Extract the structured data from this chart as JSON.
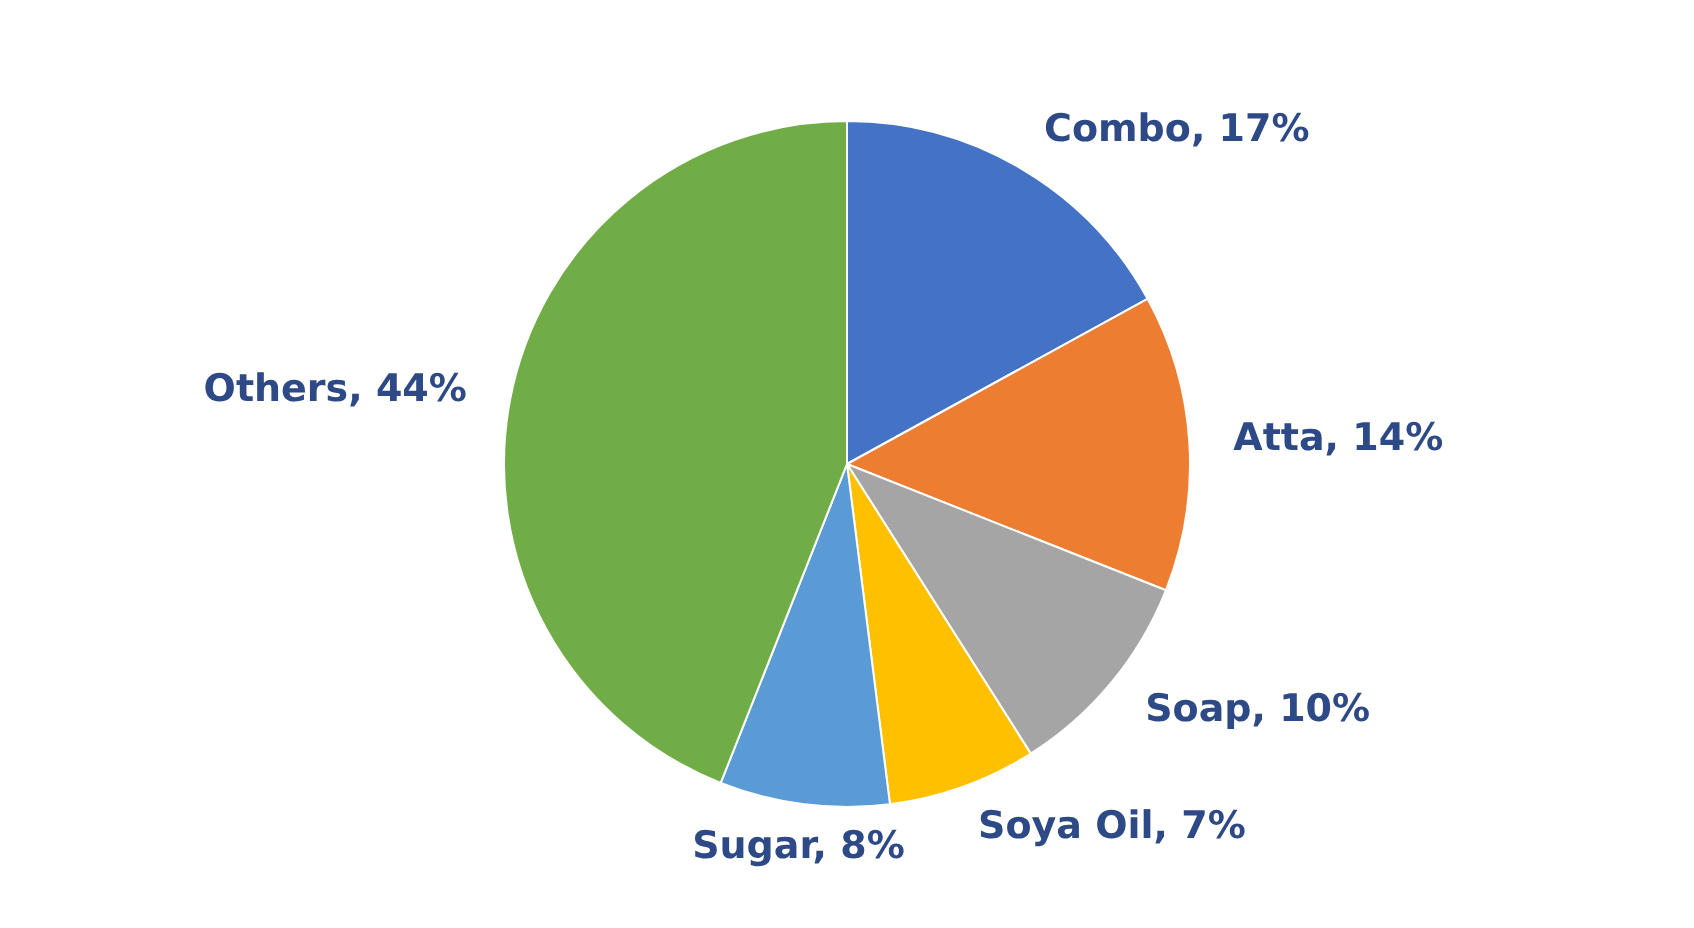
{
  "chart_data": {
    "type": "pie",
    "categories": [
      "Combo",
      "Atta",
      "Soap",
      "Soya Oil",
      "Sugar",
      "Others"
    ],
    "values": [
      17,
      14,
      10,
      7,
      8,
      44
    ],
    "value_labels": [
      "17%",
      "14%",
      "10%",
      "7%",
      "8%",
      "44%"
    ],
    "colors": [
      "#4472c4",
      "#ed7d31",
      "#a5a5a5",
      "#ffc000",
      "#5b9bd5",
      "#70ad47"
    ],
    "legend": false
  }
}
